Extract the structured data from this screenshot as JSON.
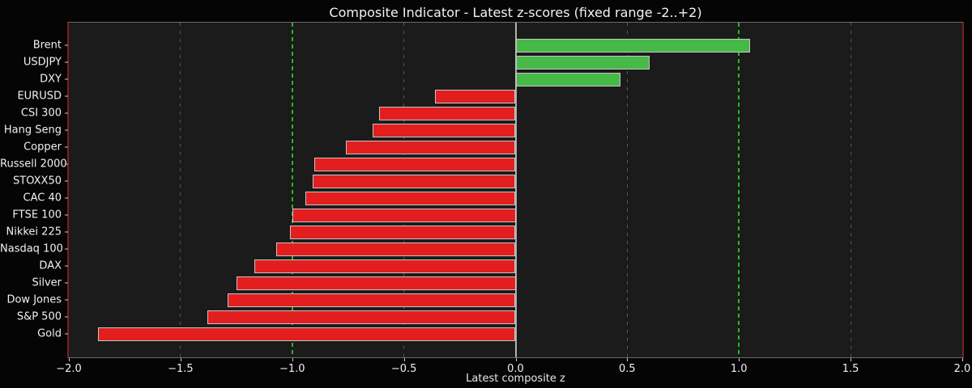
{
  "chart_data": {
    "type": "bar",
    "orientation": "horizontal",
    "title": "Composite Indicator - Latest z-scores (fixed range -2..+2)",
    "xlabel": "Latest composite z",
    "categories": [
      "Brent",
      "USDJPY",
      "DXY",
      "EURUSD",
      "CSI 300",
      "Hang Seng",
      "Copper",
      "Russell 2000",
      "STOXX50",
      "CAC 40",
      "FTSE 100",
      "Nikkei 225",
      "Nasdaq 100",
      "DAX",
      "Silver",
      "Dow Jones",
      "S&P 500",
      "Gold"
    ],
    "values": [
      1.05,
      0.6,
      0.47,
      -0.36,
      -0.61,
      -0.64,
      -0.76,
      -0.9,
      -0.91,
      -0.94,
      -1.0,
      -1.01,
      -1.07,
      -1.17,
      -1.25,
      -1.29,
      -1.38,
      -1.87
    ],
    "xlim": [
      -2.0,
      2.0
    ],
    "xticks": [
      {
        "v": -2.0,
        "label": "−2.0"
      },
      {
        "v": -1.5,
        "label": "−1.5"
      },
      {
        "v": -1.0,
        "label": "−1.0"
      },
      {
        "v": -0.5,
        "label": "−0.5"
      },
      {
        "v": 0.0,
        "label": "0.0"
      },
      {
        "v": 0.5,
        "label": "0.5"
      },
      {
        "v": 1.0,
        "label": "1.0"
      },
      {
        "v": 1.5,
        "label": "1.5"
      },
      {
        "v": 2.0,
        "label": "2.0"
      }
    ],
    "grid": true,
    "legend": false,
    "colors": {
      "positive_bar": "#46b946",
      "negative_bar": "#e31e1e",
      "bar_edge": "#c6c6c6",
      "reference_green": "#25b825",
      "zero_line": "#b0b0b0",
      "gridline": "#575757",
      "range_spine": "#7b1e1e",
      "plot_background": "#1b1b1b",
      "figure_background": "#050505",
      "text": "#f0f0f0"
    },
    "reference_lines": [
      {
        "x": -1.0,
        "color": "#25b825",
        "style": "dashed"
      },
      {
        "x": 1.0,
        "color": "#25b825",
        "style": "dashed"
      },
      {
        "x": 0.0,
        "color": "#b0b0b0",
        "style": "solid"
      }
    ]
  }
}
